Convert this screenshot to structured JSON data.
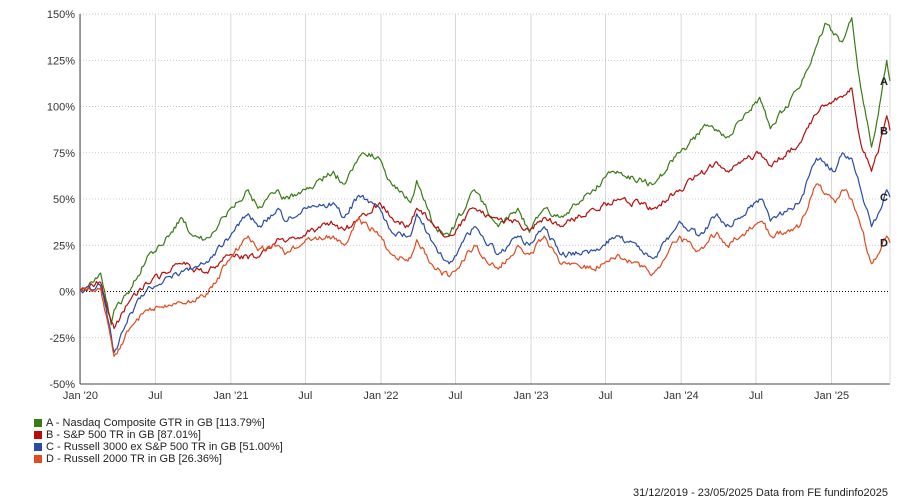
{
  "chart_data": {
    "type": "line",
    "title": "",
    "xlabel": "",
    "ylabel": "",
    "ylim": [
      -50,
      150
    ],
    "y_ticks": [
      150,
      125,
      100,
      75,
      50,
      25,
      0,
      -25,
      -50
    ],
    "y_tick_labels": [
      "150%",
      "125%",
      "100%",
      "75%",
      "50%",
      "25%",
      "0%",
      "-25%",
      "-50%"
    ],
    "x_range": [
      "2019-12-31",
      "2025-05-23"
    ],
    "x_ticks": [
      "2020-01-01",
      "2020-07-01",
      "2021-01-01",
      "2021-07-01",
      "2022-01-01",
      "2022-07-01",
      "2023-01-01",
      "2023-07-01",
      "2024-01-01",
      "2024-07-01",
      "2025-01-01"
    ],
    "x_tick_labels": [
      "Jan '20",
      "Jul",
      "Jan '21",
      "Jul",
      "Jan '22",
      "Jul",
      "Jan '23",
      "Jul",
      "Jan '24",
      "Jul",
      "Jan '25"
    ],
    "grid": true,
    "legend_position": "bottom-left",
    "series": [
      {
        "id": "A",
        "name": "A - Nasdaq Composite GTR in GB [113.79%]",
        "color": "#3b7a17",
        "points": [
          [
            "2019-12-31",
            0
          ],
          [
            "2020-01-31",
            5
          ],
          [
            "2020-02-19",
            10
          ],
          [
            "2020-03-16",
            -18
          ],
          [
            "2020-03-23",
            -10
          ],
          [
            "2020-04-30",
            0
          ],
          [
            "2020-06-15",
            20
          ],
          [
            "2020-07-20",
            25
          ],
          [
            "2020-09-02",
            40
          ],
          [
            "2020-09-30",
            30
          ],
          [
            "2020-10-30",
            28
          ],
          [
            "2020-12-31",
            45
          ],
          [
            "2021-02-12",
            55
          ],
          [
            "2021-03-08",
            45
          ],
          [
            "2021-04-26",
            55
          ],
          [
            "2021-05-12",
            50
          ],
          [
            "2021-07-02",
            55
          ],
          [
            "2021-09-07",
            65
          ],
          [
            "2021-10-04",
            58
          ],
          [
            "2021-11-19",
            75
          ],
          [
            "2021-12-28",
            72
          ],
          [
            "2022-01-27",
            58
          ],
          [
            "2022-03-14",
            48
          ],
          [
            "2022-03-29",
            60
          ],
          [
            "2022-05-12",
            35
          ],
          [
            "2022-06-16",
            30
          ],
          [
            "2022-08-16",
            55
          ],
          [
            "2022-10-13",
            35
          ],
          [
            "2022-11-30",
            45
          ],
          [
            "2022-12-28",
            32
          ],
          [
            "2023-02-02",
            45
          ],
          [
            "2023-03-13",
            40
          ],
          [
            "2023-05-31",
            55
          ],
          [
            "2023-07-19",
            65
          ],
          [
            "2023-10-26",
            58
          ],
          [
            "2023-12-28",
            75
          ],
          [
            "2024-03-05",
            90
          ],
          [
            "2024-04-19",
            83
          ],
          [
            "2024-07-10",
            105
          ],
          [
            "2024-08-05",
            88
          ],
          [
            "2024-10-15",
            110
          ],
          [
            "2024-12-16",
            145
          ],
          [
            "2025-01-27",
            135
          ],
          [
            "2025-02-19",
            148
          ],
          [
            "2025-03-13",
            110
          ],
          [
            "2025-04-08",
            78
          ],
          [
            "2025-04-24",
            95
          ],
          [
            "2025-05-15",
            125
          ],
          [
            "2025-05-23",
            113.79
          ]
        ]
      },
      {
        "id": "B",
        "name": "B - S&P 500 TR in GB [87.01%]",
        "color": "#b40e0e",
        "points": [
          [
            "2019-12-31",
            0
          ],
          [
            "2020-02-19",
            5
          ],
          [
            "2020-03-23",
            -20
          ],
          [
            "2020-04-30",
            -5
          ],
          [
            "2020-06-08",
            5
          ],
          [
            "2020-07-31",
            10
          ],
          [
            "2020-09-02",
            15
          ],
          [
            "2020-10-30",
            10
          ],
          [
            "2020-12-31",
            20
          ],
          [
            "2021-03-04",
            18
          ],
          [
            "2021-04-30",
            28
          ],
          [
            "2021-06-30",
            30
          ],
          [
            "2021-09-02",
            38
          ],
          [
            "2021-10-04",
            33
          ],
          [
            "2021-11-30",
            42
          ],
          [
            "2021-12-29",
            48
          ],
          [
            "2022-01-27",
            40
          ],
          [
            "2022-03-08",
            35
          ],
          [
            "2022-03-29",
            45
          ],
          [
            "2022-05-20",
            35
          ],
          [
            "2022-06-16",
            30
          ],
          [
            "2022-08-16",
            45
          ],
          [
            "2022-09-30",
            40
          ],
          [
            "2022-11-30",
            38
          ],
          [
            "2022-12-28",
            33
          ],
          [
            "2023-02-02",
            40
          ],
          [
            "2023-03-13",
            35
          ],
          [
            "2023-05-31",
            45
          ],
          [
            "2023-07-31",
            50
          ],
          [
            "2023-10-27",
            45
          ],
          [
            "2023-12-28",
            55
          ],
          [
            "2024-03-28",
            70
          ],
          [
            "2024-04-19",
            65
          ],
          [
            "2024-07-10",
            75
          ],
          [
            "2024-08-05",
            68
          ],
          [
            "2024-10-15",
            80
          ],
          [
            "2024-12-06",
            100
          ],
          [
            "2025-01-27",
            105
          ],
          [
            "2025-02-19",
            110
          ],
          [
            "2025-03-13",
            80
          ],
          [
            "2025-04-08",
            65
          ],
          [
            "2025-04-24",
            75
          ],
          [
            "2025-05-15",
            95
          ],
          [
            "2025-05-23",
            87.01
          ]
        ]
      },
      {
        "id": "C",
        "name": "C - Russell 3000 ex S&P 500 TR in GB [51.00%]",
        "color": "#2a4aa5",
        "points": [
          [
            "2019-12-31",
            0
          ],
          [
            "2020-02-19",
            3
          ],
          [
            "2020-03-23",
            -33
          ],
          [
            "2020-04-30",
            -12
          ],
          [
            "2020-06-08",
            0
          ],
          [
            "2020-07-31",
            8
          ],
          [
            "2020-09-30",
            12
          ],
          [
            "2020-10-30",
            15
          ],
          [
            "2020-12-31",
            30
          ],
          [
            "2021-02-12",
            42
          ],
          [
            "2021-03-08",
            35
          ],
          [
            "2021-04-26",
            45
          ],
          [
            "2021-05-12",
            38
          ],
          [
            "2021-07-02",
            45
          ],
          [
            "2021-09-07",
            48
          ],
          [
            "2021-10-04",
            40
          ],
          [
            "2021-11-08",
            52
          ],
          [
            "2021-12-29",
            45
          ],
          [
            "2022-01-27",
            32
          ],
          [
            "2022-03-14",
            30
          ],
          [
            "2022-03-29",
            42
          ],
          [
            "2022-05-12",
            25
          ],
          [
            "2022-06-16",
            15
          ],
          [
            "2022-08-16",
            35
          ],
          [
            "2022-10-13",
            20
          ],
          [
            "2022-11-30",
            30
          ],
          [
            "2022-12-28",
            25
          ],
          [
            "2023-02-02",
            35
          ],
          [
            "2023-03-13",
            20
          ],
          [
            "2023-05-31",
            22
          ],
          [
            "2023-07-31",
            30
          ],
          [
            "2023-10-27",
            18
          ],
          [
            "2023-12-28",
            38
          ],
          [
            "2024-02-13",
            30
          ],
          [
            "2024-03-28",
            42
          ],
          [
            "2024-04-19",
            35
          ],
          [
            "2024-07-16",
            50
          ],
          [
            "2024-08-05",
            38
          ],
          [
            "2024-10-15",
            48
          ],
          [
            "2024-11-25",
            72
          ],
          [
            "2025-01-10",
            65
          ],
          [
            "2025-01-27",
            75
          ],
          [
            "2025-02-19",
            72
          ],
          [
            "2025-03-13",
            55
          ],
          [
            "2025-04-08",
            35
          ],
          [
            "2025-04-24",
            42
          ],
          [
            "2025-05-15",
            55
          ],
          [
            "2025-05-23",
            51.0
          ]
        ]
      },
      {
        "id": "D",
        "name": "D - Russell 2000 TR in GB [26.36%]",
        "color": "#e04b20",
        "points": [
          [
            "2019-12-31",
            0
          ],
          [
            "2020-02-19",
            2
          ],
          [
            "2020-03-23",
            -35
          ],
          [
            "2020-04-30",
            -20
          ],
          [
            "2020-06-08",
            -10
          ],
          [
            "2020-07-31",
            -8
          ],
          [
            "2020-09-30",
            -5
          ],
          [
            "2020-10-30",
            -3
          ],
          [
            "2020-12-31",
            18
          ],
          [
            "2021-02-12",
            30
          ],
          [
            "2021-03-08",
            22
          ],
          [
            "2021-04-26",
            25
          ],
          [
            "2021-05-12",
            20
          ],
          [
            "2021-07-02",
            28
          ],
          [
            "2021-09-07",
            30
          ],
          [
            "2021-10-04",
            25
          ],
          [
            "2021-11-08",
            40
          ],
          [
            "2021-12-29",
            30
          ],
          [
            "2022-01-27",
            20
          ],
          [
            "2022-03-14",
            18
          ],
          [
            "2022-03-29",
            28
          ],
          [
            "2022-05-12",
            12
          ],
          [
            "2022-06-16",
            8
          ],
          [
            "2022-08-16",
            25
          ],
          [
            "2022-10-13",
            12
          ],
          [
            "2022-11-30",
            25
          ],
          [
            "2022-12-28",
            20
          ],
          [
            "2023-02-02",
            30
          ],
          [
            "2023-03-13",
            15
          ],
          [
            "2023-05-31",
            12
          ],
          [
            "2023-07-31",
            20
          ],
          [
            "2023-10-27",
            10
          ],
          [
            "2023-12-28",
            30
          ],
          [
            "2024-02-13",
            22
          ],
          [
            "2024-03-28",
            32
          ],
          [
            "2024-04-19",
            25
          ],
          [
            "2024-07-16",
            38
          ],
          [
            "2024-08-05",
            30
          ],
          [
            "2024-10-15",
            35
          ],
          [
            "2024-11-25",
            58
          ],
          [
            "2025-01-10",
            48
          ],
          [
            "2025-01-27",
            55
          ],
          [
            "2025-02-19",
            50
          ],
          [
            "2025-03-13",
            35
          ],
          [
            "2025-04-08",
            15
          ],
          [
            "2025-04-24",
            20
          ],
          [
            "2025-05-15",
            30
          ],
          [
            "2025-05-23",
            26.36
          ]
        ]
      }
    ]
  },
  "footer": {
    "date_range": "31/12/2019 - 23/05/2025",
    "source": "Data from FE fundinfo2025"
  }
}
